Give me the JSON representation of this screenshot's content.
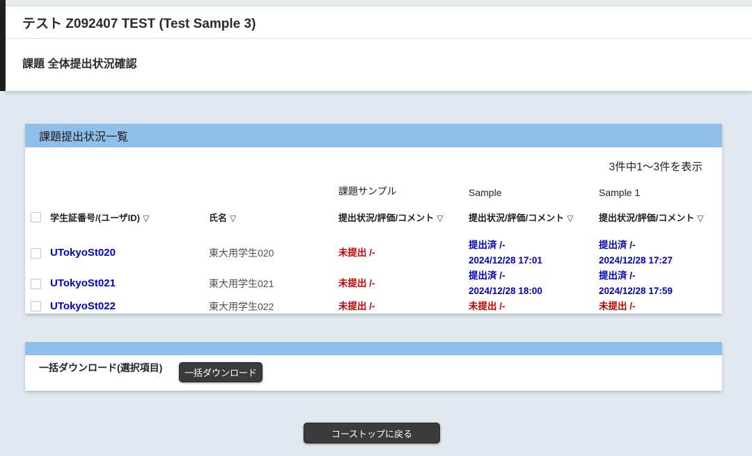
{
  "header": {
    "course_title": "テスト Z092407 TEST (Test Sample 3)",
    "page_title": "課題 全体提出状況確認"
  },
  "panel": {
    "title": "課題提出状況一覧",
    "count_text": "3件中1〜3件を表示",
    "sort_icon": "▽",
    "columns": {
      "student_id": "学生証番号/(ユーザID)",
      "name": "氏名",
      "status": "提出状況/評価/コメント"
    },
    "assignments": [
      "課題サンプル",
      "Sample",
      "Sample 1"
    ],
    "rows": [
      {
        "user_id": "UTokyoSt020",
        "name": "東大用学生020",
        "statuses": [
          {
            "state": "未提出 /-",
            "date": "",
            "type": "unsubmitted"
          },
          {
            "state": "提出済 /-",
            "date": "2024/12/28 17:01",
            "type": "submitted"
          },
          {
            "state": "提出済 /-",
            "date": "2024/12/28 17:27",
            "type": "submitted"
          }
        ]
      },
      {
        "user_id": "UTokyoSt021",
        "name": "東大用学生021",
        "statuses": [
          {
            "state": "未提出 /-",
            "date": "",
            "type": "unsubmitted"
          },
          {
            "state": "提出済 /-",
            "date": "2024/12/28 18:00",
            "type": "submitted"
          },
          {
            "state": "提出済 /-",
            "date": "2024/12/28 17:59",
            "type": "submitted"
          }
        ]
      },
      {
        "user_id": "UTokyoSt022",
        "name": "東大用学生022",
        "statuses": [
          {
            "state": "未提出 /-",
            "date": "",
            "type": "unsubmitted"
          },
          {
            "state": "未提出 /-",
            "date": "",
            "type": "unsubmitted"
          },
          {
            "state": "未提出 /-",
            "date": "",
            "type": "unsubmitted"
          }
        ]
      }
    ]
  },
  "download": {
    "label": "一括ダウンロード(選択項目)",
    "button_label": "一括ダウンロード"
  },
  "footer": {
    "back_button_label": "コーストップに戻る"
  },
  "colors": {
    "accent_blue": "#90c0e9",
    "link_blue": "#0000cc",
    "status_submitted_blue": "#0000bd",
    "status_unsubmitted_red": "#c60000",
    "button_dark": "#3b3b3b",
    "page_background": "#e3e9f0"
  }
}
